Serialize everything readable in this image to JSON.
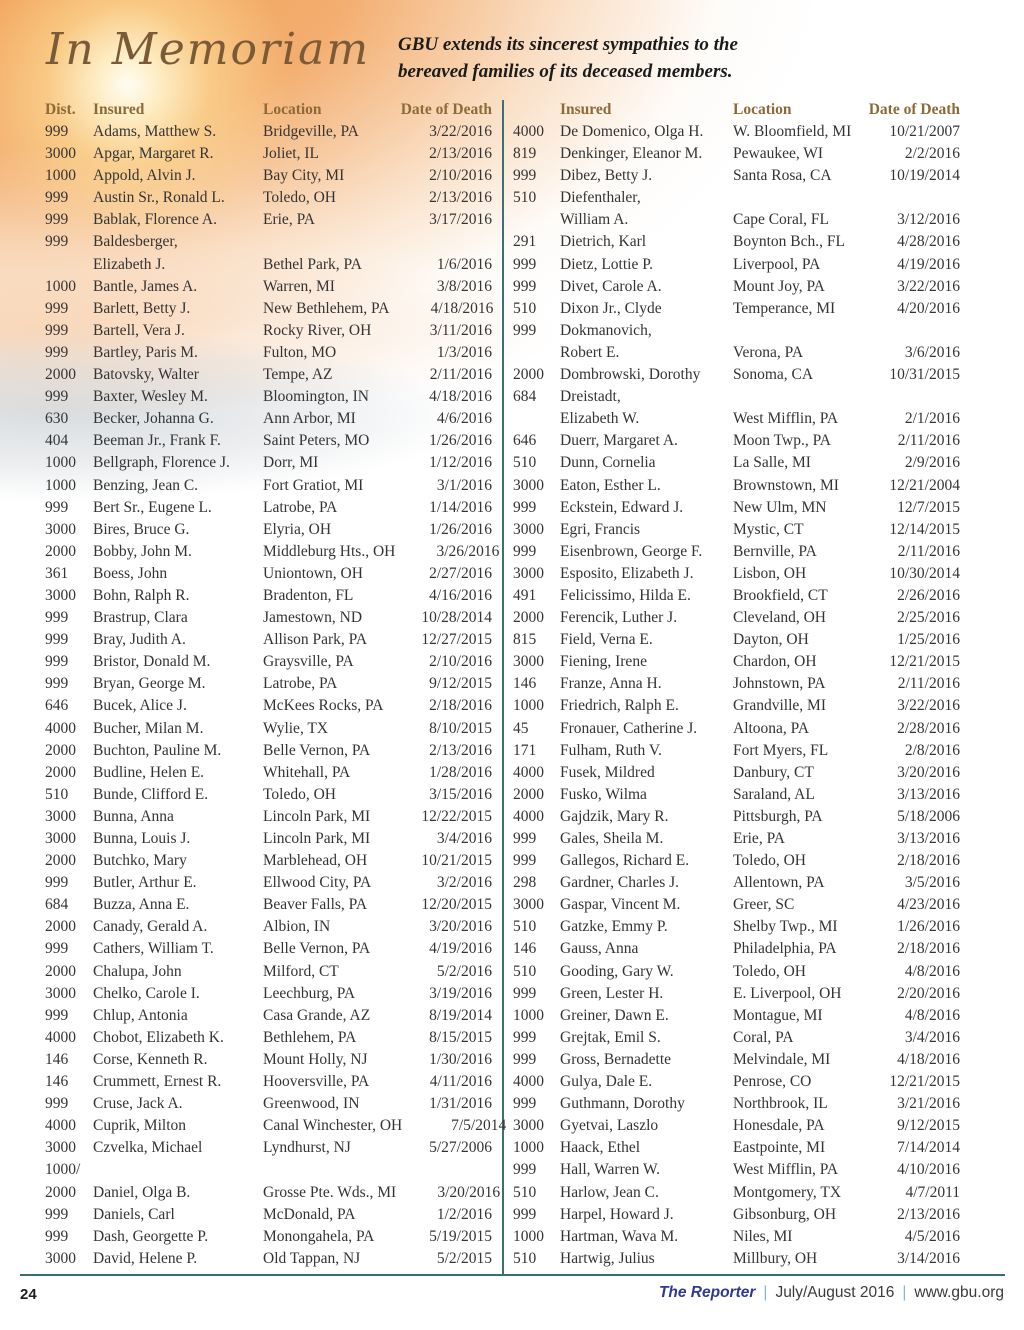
{
  "header": {
    "title": "In Memoriam",
    "subtitle_line1": "GBU extends its sincerest sympathies to the",
    "subtitle_line2": "bereaved families of its deceased members."
  },
  "colors": {
    "accent_gold": "#8c6b39",
    "title_brown": "#7a5a37",
    "divider_teal": "#3a6e6e",
    "brand_blue": "#2e3a92",
    "body_text": "#343434"
  },
  "left_table": {
    "headers": {
      "dist": "Dist.",
      "insured": "Insured",
      "location": "Location",
      "date": "Date of Death"
    },
    "rows": [
      {
        "dist": "999",
        "insured": "Adams, Matthew S.",
        "location": "Bridgeville, PA",
        "date": "3/22/2016"
      },
      {
        "dist": "3000",
        "insured": "Apgar, Margaret R.",
        "location": "Joliet, IL",
        "date": "2/13/2016"
      },
      {
        "dist": "1000",
        "insured": "Appold, Alvin J.",
        "location": "Bay City, MI",
        "date": "2/10/2016"
      },
      {
        "dist": "999",
        "insured": "Austin Sr., Ronald L.",
        "location": "Toledo, OH",
        "date": "2/13/2016"
      },
      {
        "dist": "999",
        "insured": "Bablak, Florence A.",
        "location": "Erie, PA",
        "date": "3/17/2016"
      },
      {
        "dist": "999",
        "insured": "Baldesberger,",
        "location": "",
        "date": ""
      },
      {
        "dist": "",
        "insured": "Elizabeth J.",
        "location": "Bethel Park, PA",
        "date": "1/6/2016"
      },
      {
        "dist": "1000",
        "insured": "Bantle, James A.",
        "location": "Warren, MI",
        "date": "3/8/2016"
      },
      {
        "dist": "999",
        "insured": "Barlett, Betty J.",
        "location": "New Bethlehem, PA",
        "date": "4/18/2016"
      },
      {
        "dist": "999",
        "insured": "Bartell, Vera J.",
        "location": "Rocky River, OH",
        "date": "3/11/2016"
      },
      {
        "dist": "999",
        "insured": "Bartley, Paris M.",
        "location": "Fulton, MO",
        "date": "1/3/2016"
      },
      {
        "dist": "2000",
        "insured": "Batovsky, Walter",
        "location": "Tempe, AZ",
        "date": "2/11/2016"
      },
      {
        "dist": "999",
        "insured": "Baxter, Wesley M.",
        "location": "Bloomington, IN",
        "date": "4/18/2016"
      },
      {
        "dist": "630",
        "insured": "Becker, Johanna G.",
        "location": "Ann Arbor, MI",
        "date": "4/6/2016"
      },
      {
        "dist": "404",
        "insured": "Beeman Jr., Frank F.",
        "location": "Saint Peters, MO",
        "date": "1/26/2016"
      },
      {
        "dist": "1000",
        "insured": "Bellgraph, Florence J.",
        "location": "Dorr, MI",
        "date": "1/12/2016"
      },
      {
        "dist": "1000",
        "insured": "Benzing, Jean C.",
        "location": "Fort Gratiot, MI",
        "date": "3/1/2016"
      },
      {
        "dist": "999",
        "insured": "Bert Sr., Eugene L.",
        "location": "Latrobe, PA",
        "date": "1/14/2016"
      },
      {
        "dist": "3000",
        "insured": "Bires, Bruce G.",
        "location": "Elyria, OH",
        "date": "1/26/2016"
      },
      {
        "dist": "2000",
        "insured": "Bobby, John M.",
        "location": "Middleburg Hts., OH",
        "date": "3/26/2016"
      },
      {
        "dist": "361",
        "insured": "Boess, John",
        "location": "Uniontown, OH",
        "date": "2/27/2016"
      },
      {
        "dist": "3000",
        "insured": "Bohn, Ralph R.",
        "location": "Bradenton, FL",
        "date": "4/16/2016"
      },
      {
        "dist": "999",
        "insured": "Brastrup, Clara",
        "location": "Jamestown, ND",
        "date": "10/28/2014"
      },
      {
        "dist": "999",
        "insured": "Bray, Judith A.",
        "location": "Allison Park, PA",
        "date": "12/27/2015"
      },
      {
        "dist": "999",
        "insured": "Bristor, Donald M.",
        "location": "Graysville, PA",
        "date": "2/10/2016"
      },
      {
        "dist": "999",
        "insured": "Bryan, George M.",
        "location": "Latrobe, PA",
        "date": "9/12/2015"
      },
      {
        "dist": "646",
        "insured": "Bucek, Alice J.",
        "location": "McKees Rocks, PA",
        "date": "2/18/2016"
      },
      {
        "dist": "4000",
        "insured": "Bucher, Milan M.",
        "location": "Wylie, TX",
        "date": "8/10/2015"
      },
      {
        "dist": "2000",
        "insured": "Buchton, Pauline M.",
        "location": "Belle Vernon, PA",
        "date": "2/13/2016"
      },
      {
        "dist": "2000",
        "insured": "Budline, Helen E.",
        "location": "Whitehall, PA",
        "date": "1/28/2016"
      },
      {
        "dist": "510",
        "insured": "Bunde, Clifford E.",
        "location": "Toledo, OH",
        "date": "3/15/2016"
      },
      {
        "dist": "3000",
        "insured": "Bunna, Anna",
        "location": "Lincoln Park, MI",
        "date": "12/22/2015"
      },
      {
        "dist": "3000",
        "insured": "Bunna, Louis J.",
        "location": "Lincoln Park, MI",
        "date": "3/4/2016"
      },
      {
        "dist": "2000",
        "insured": "Butchko, Mary",
        "location": "Marblehead, OH",
        "date": "10/21/2015"
      },
      {
        "dist": "999",
        "insured": "Butler, Arthur E.",
        "location": "Ellwood City, PA",
        "date": "3/2/2016"
      },
      {
        "dist": "684",
        "insured": "Buzza, Anna E.",
        "location": "Beaver Falls, PA",
        "date": "12/20/2015"
      },
      {
        "dist": "2000",
        "insured": "Canady, Gerald A.",
        "location": "Albion, IN",
        "date": "3/20/2016"
      },
      {
        "dist": "999",
        "insured": "Cathers, William T.",
        "location": "Belle Vernon, PA",
        "date": "4/19/2016"
      },
      {
        "dist": "2000",
        "insured": "Chalupa, John",
        "location": "Milford, CT",
        "date": "5/2/2016"
      },
      {
        "dist": "3000",
        "insured": "Chelko, Carole I.",
        "location": "Leechburg, PA",
        "date": "3/19/2016"
      },
      {
        "dist": "999",
        "insured": "Chlup, Antonia",
        "location": "Casa Grande, AZ",
        "date": "8/19/2014"
      },
      {
        "dist": "4000",
        "insured": "Chobot, Elizabeth K.",
        "location": "Bethlehem, PA",
        "date": "8/15/2015"
      },
      {
        "dist": "146",
        "insured": "Corse, Kenneth R.",
        "location": "Mount Holly, NJ",
        "date": "1/30/2016"
      },
      {
        "dist": "146",
        "insured": "Crummett, Ernest R.",
        "location": "Hooversville, PA",
        "date": "4/11/2016"
      },
      {
        "dist": "999",
        "insured": "Cruse, Jack A.",
        "location": "Greenwood, IN",
        "date": "1/31/2016"
      },
      {
        "dist": "4000",
        "insured": "Cuprik, Milton",
        "location": "Canal Winchester, OH",
        "date": "7/5/2014"
      },
      {
        "dist": "3000",
        "insured": "Czvelka, Michael",
        "location": "Lyndhurst, NJ",
        "date": "5/27/2006"
      },
      {
        "dist": "1000/",
        "insured": "",
        "location": "",
        "date": ""
      },
      {
        "dist": "2000",
        "insured": "Daniel, Olga B.",
        "location": "Grosse Pte. Wds., MI",
        "date": "3/20/2016"
      },
      {
        "dist": "999",
        "insured": "Daniels, Carl",
        "location": "McDonald, PA",
        "date": "1/2/2016"
      },
      {
        "dist": "999",
        "insured": "Dash, Georgette P.",
        "location": "Monongahela, PA",
        "date": "5/19/2015"
      },
      {
        "dist": "3000",
        "insured": "David, Helene P.",
        "location": "Old Tappan, NJ",
        "date": "5/2/2015"
      }
    ]
  },
  "right_table": {
    "headers": {
      "dist": "",
      "insured": "Insured",
      "location": "Location",
      "date": "Date of Death"
    },
    "rows": [
      {
        "dist": "4000",
        "insured": "De Domenico, Olga H.",
        "location": "W. Bloomfield, MI",
        "date": "10/21/2007"
      },
      {
        "dist": "819",
        "insured": "Denkinger, Eleanor M.",
        "location": "Pewaukee, WI",
        "date": "2/2/2016"
      },
      {
        "dist": "999",
        "insured": "Dibez, Betty J.",
        "location": "Santa Rosa, CA",
        "date": "10/19/2014"
      },
      {
        "dist": "510",
        "insured": "Diefenthaler,",
        "location": "",
        "date": ""
      },
      {
        "dist": "",
        "insured": "William A.",
        "location": "Cape Coral, FL",
        "date": "3/12/2016"
      },
      {
        "dist": "291",
        "insured": "Dietrich, Karl",
        "location": "Boynton Bch., FL",
        "date": "4/28/2016"
      },
      {
        "dist": "999",
        "insured": "Dietz, Lottie P.",
        "location": "Liverpool, PA",
        "date": "4/19/2016"
      },
      {
        "dist": "999",
        "insured": "Divet, Carole A.",
        "location": "Mount Joy, PA",
        "date": "3/22/2016"
      },
      {
        "dist": "510",
        "insured": "Dixon Jr., Clyde",
        "location": "Temperance, MI",
        "date": "4/20/2016"
      },
      {
        "dist": "999",
        "insured": "Dokmanovich,",
        "location": "",
        "date": ""
      },
      {
        "dist": "",
        "insured": "Robert E.",
        "location": "Verona, PA",
        "date": "3/6/2016"
      },
      {
        "dist": "2000",
        "insured": "Dombrowski, Dorothy",
        "location": "Sonoma, CA",
        "date": "10/31/2015"
      },
      {
        "dist": "684",
        "insured": "Dreistadt,",
        "location": "",
        "date": ""
      },
      {
        "dist": "",
        "insured": "Elizabeth W.",
        "location": "West Mifflin, PA",
        "date": "2/1/2016"
      },
      {
        "dist": "646",
        "insured": "Duerr, Margaret A.",
        "location": "Moon Twp., PA",
        "date": "2/11/2016"
      },
      {
        "dist": "510",
        "insured": "Dunn, Cornelia",
        "location": "La Salle, MI",
        "date": "2/9/2016"
      },
      {
        "dist": "3000",
        "insured": "Eaton, Esther L.",
        "location": "Brownstown, MI",
        "date": "12/21/2004"
      },
      {
        "dist": "999",
        "insured": "Eckstein, Edward J.",
        "location": "New Ulm, MN",
        "date": "12/7/2015"
      },
      {
        "dist": "3000",
        "insured": "Egri, Francis",
        "location": "Mystic, CT",
        "date": "12/14/2015"
      },
      {
        "dist": "999",
        "insured": "Eisenbrown, George F.",
        "location": "Bernville, PA",
        "date": "2/11/2016"
      },
      {
        "dist": "3000",
        "insured": "Esposito, Elizabeth J.",
        "location": "Lisbon, OH",
        "date": "10/30/2014"
      },
      {
        "dist": "491",
        "insured": "Felicissimo, Hilda E.",
        "location": "Brookfield, CT",
        "date": "2/26/2016"
      },
      {
        "dist": "2000",
        "insured": "Ferencik, Luther J.",
        "location": "Cleveland, OH",
        "date": "2/25/2016"
      },
      {
        "dist": "815",
        "insured": "Field, Verna E.",
        "location": "Dayton, OH",
        "date": "1/25/2016"
      },
      {
        "dist": "3000",
        "insured": "Fiening, Irene",
        "location": "Chardon, OH",
        "date": "12/21/2015"
      },
      {
        "dist": "146",
        "insured": "Franze, Anna H.",
        "location": "Johnstown, PA",
        "date": "2/11/2016"
      },
      {
        "dist": "1000",
        "insured": "Friedrich, Ralph E.",
        "location": "Grandville, MI",
        "date": "3/22/2016"
      },
      {
        "dist": "45",
        "insured": "Fronauer, Catherine J.",
        "location": "Altoona, PA",
        "date": "2/28/2016"
      },
      {
        "dist": "171",
        "insured": "Fulham, Ruth V.",
        "location": "Fort Myers, FL",
        "date": "2/8/2016"
      },
      {
        "dist": "4000",
        "insured": "Fusek, Mildred",
        "location": "Danbury, CT",
        "date": "3/20/2016"
      },
      {
        "dist": "2000",
        "insured": "Fusko, Wilma",
        "location": "Saraland, AL",
        "date": "3/13/2016"
      },
      {
        "dist": "4000",
        "insured": "Gajdzik, Mary R.",
        "location": "Pittsburgh, PA",
        "date": "5/18/2006"
      },
      {
        "dist": "999",
        "insured": "Gales, Sheila M.",
        "location": "Erie, PA",
        "date": "3/13/2016"
      },
      {
        "dist": "999",
        "insured": "Gallegos, Richard E.",
        "location": "Toledo, OH",
        "date": "2/18/2016"
      },
      {
        "dist": "298",
        "insured": "Gardner, Charles J.",
        "location": "Allentown, PA",
        "date": "3/5/2016"
      },
      {
        "dist": "3000",
        "insured": "Gaspar, Vincent M.",
        "location": "Greer, SC",
        "date": "4/23/2016"
      },
      {
        "dist": "510",
        "insured": "Gatzke, Emmy P.",
        "location": "Shelby Twp., MI",
        "date": "1/26/2016"
      },
      {
        "dist": "146",
        "insured": "Gauss, Anna",
        "location": "Philadelphia, PA",
        "date": "2/18/2016"
      },
      {
        "dist": "510",
        "insured": "Gooding, Gary W.",
        "location": "Toledo, OH",
        "date": "4/8/2016"
      },
      {
        "dist": "999",
        "insured": "Green, Lester H.",
        "location": "E. Liverpool, OH",
        "date": "2/20/2016"
      },
      {
        "dist": "1000",
        "insured": "Greiner, Dawn E.",
        "location": "Montague, MI",
        "date": "4/8/2016"
      },
      {
        "dist": "999",
        "insured": "Grejtak, Emil S.",
        "location": "Coral, PA",
        "date": "3/4/2016"
      },
      {
        "dist": "999",
        "insured": "Gross, Bernadette",
        "location": "Melvindale, MI",
        "date": "4/18/2016"
      },
      {
        "dist": "4000",
        "insured": "Gulya, Dale E.",
        "location": "Penrose, CO",
        "date": "12/21/2015"
      },
      {
        "dist": "999",
        "insured": "Guthmann, Dorothy",
        "location": "Northbrook, IL",
        "date": "3/21/2016"
      },
      {
        "dist": "3000",
        "insured": "Gyetvai, Laszlo",
        "location": "Honesdale, PA",
        "date": "9/12/2015"
      },
      {
        "dist": "1000",
        "insured": "Haack, Ethel",
        "location": "Eastpointe, MI",
        "date": "7/14/2014"
      },
      {
        "dist": "999",
        "insured": "Hall, Warren W.",
        "location": "West Mifflin, PA",
        "date": "4/10/2016"
      },
      {
        "dist": "510",
        "insured": "Harlow, Jean C.",
        "location": "Montgomery, TX",
        "date": "4/7/2011"
      },
      {
        "dist": "999",
        "insured": "Harpel, Howard J.",
        "location": "Gibsonburg, OH",
        "date": "2/13/2016"
      },
      {
        "dist": "1000",
        "insured": "Hartman, Wava M.",
        "location": "Niles, MI",
        "date": "4/5/2016"
      },
      {
        "dist": "510",
        "insured": "Hartwig, Julius",
        "location": "Millbury, OH",
        "date": "3/14/2016"
      }
    ]
  },
  "footer": {
    "page_number": "24",
    "brand": "The Reporter",
    "separator": "|",
    "issue": "July/August 2016",
    "website": "www.gbu.org"
  }
}
